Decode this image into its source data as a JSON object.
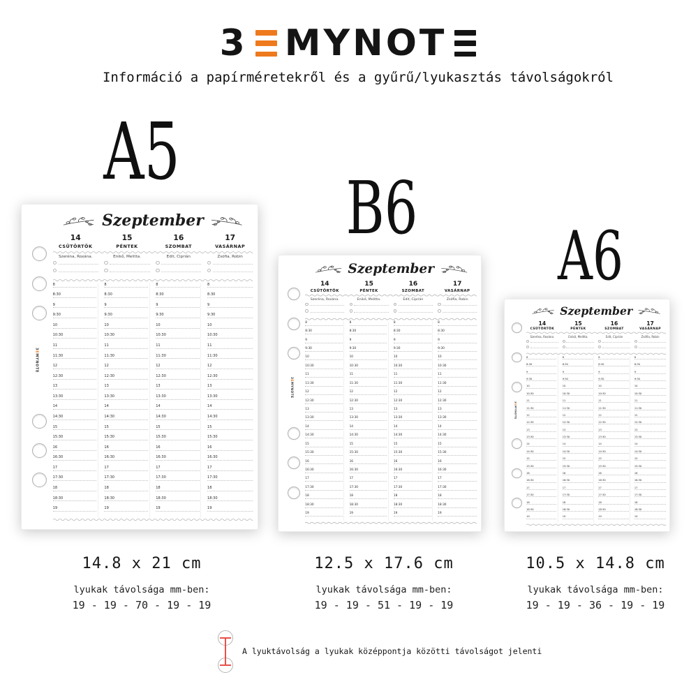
{
  "logo": {
    "name": "BEMYNOTE",
    "first_glyph": "3",
    "middle_glyphs": "MYNOT",
    "accent_color": "#ee7a1d"
  },
  "subtitle": "Információ a papírméretekről és a gyűrű/lyukasztás távolságokról",
  "planner": {
    "month": "Szeptember",
    "days": [
      {
        "number": "14",
        "name": "CSÜTÖRTÖK",
        "nameday": "Szeréna, Roxána."
      },
      {
        "number": "15",
        "name": "PÉNTEK",
        "nameday": "Enikő, Melitta."
      },
      {
        "number": "16",
        "name": "SZOMBAT",
        "nameday": "Edit, Ciprián"
      },
      {
        "number": "17",
        "name": "VASÁRNAP",
        "nameday": "Zsófia, Robin"
      }
    ],
    "times": [
      "8",
      "8:30",
      "9",
      "9:30",
      "10",
      "10:30",
      "11",
      "11:30",
      "12",
      "12:30",
      "13",
      "13:30",
      "14",
      "14:30",
      "15",
      "15:30",
      "16",
      "16:30",
      "17",
      "17:30",
      "18",
      "18:30",
      "19"
    ],
    "side_logo": {
      "first": "3",
      "accent": "E",
      "rest": "MYNOTE"
    }
  },
  "sizes": [
    {
      "label": "A5",
      "dimensions": "14.8 x 21 cm",
      "holes_caption": "lyukak távolsága mm-ben:",
      "holes_distances": "19 - 19 - 70 - 19 - 19"
    },
    {
      "label": "B6",
      "dimensions": "12.5 x 17.6 cm",
      "holes_caption": "lyukak távolsága mm-ben:",
      "holes_distances": "19 - 19 - 51 - 19 - 19"
    },
    {
      "label": "A6",
      "dimensions": "10.5 x 14.8 cm",
      "holes_caption": "lyukak távolsága mm-ben:",
      "holes_distances": "19 - 19 - 36 - 19 - 19"
    }
  ],
  "footer": {
    "note": "A lyuktávolság a lyukak középpontja közötti távolságot jelenti"
  },
  "colors": {
    "accent_orange": "#ee7a1d",
    "measure_red": "#e8504a"
  }
}
